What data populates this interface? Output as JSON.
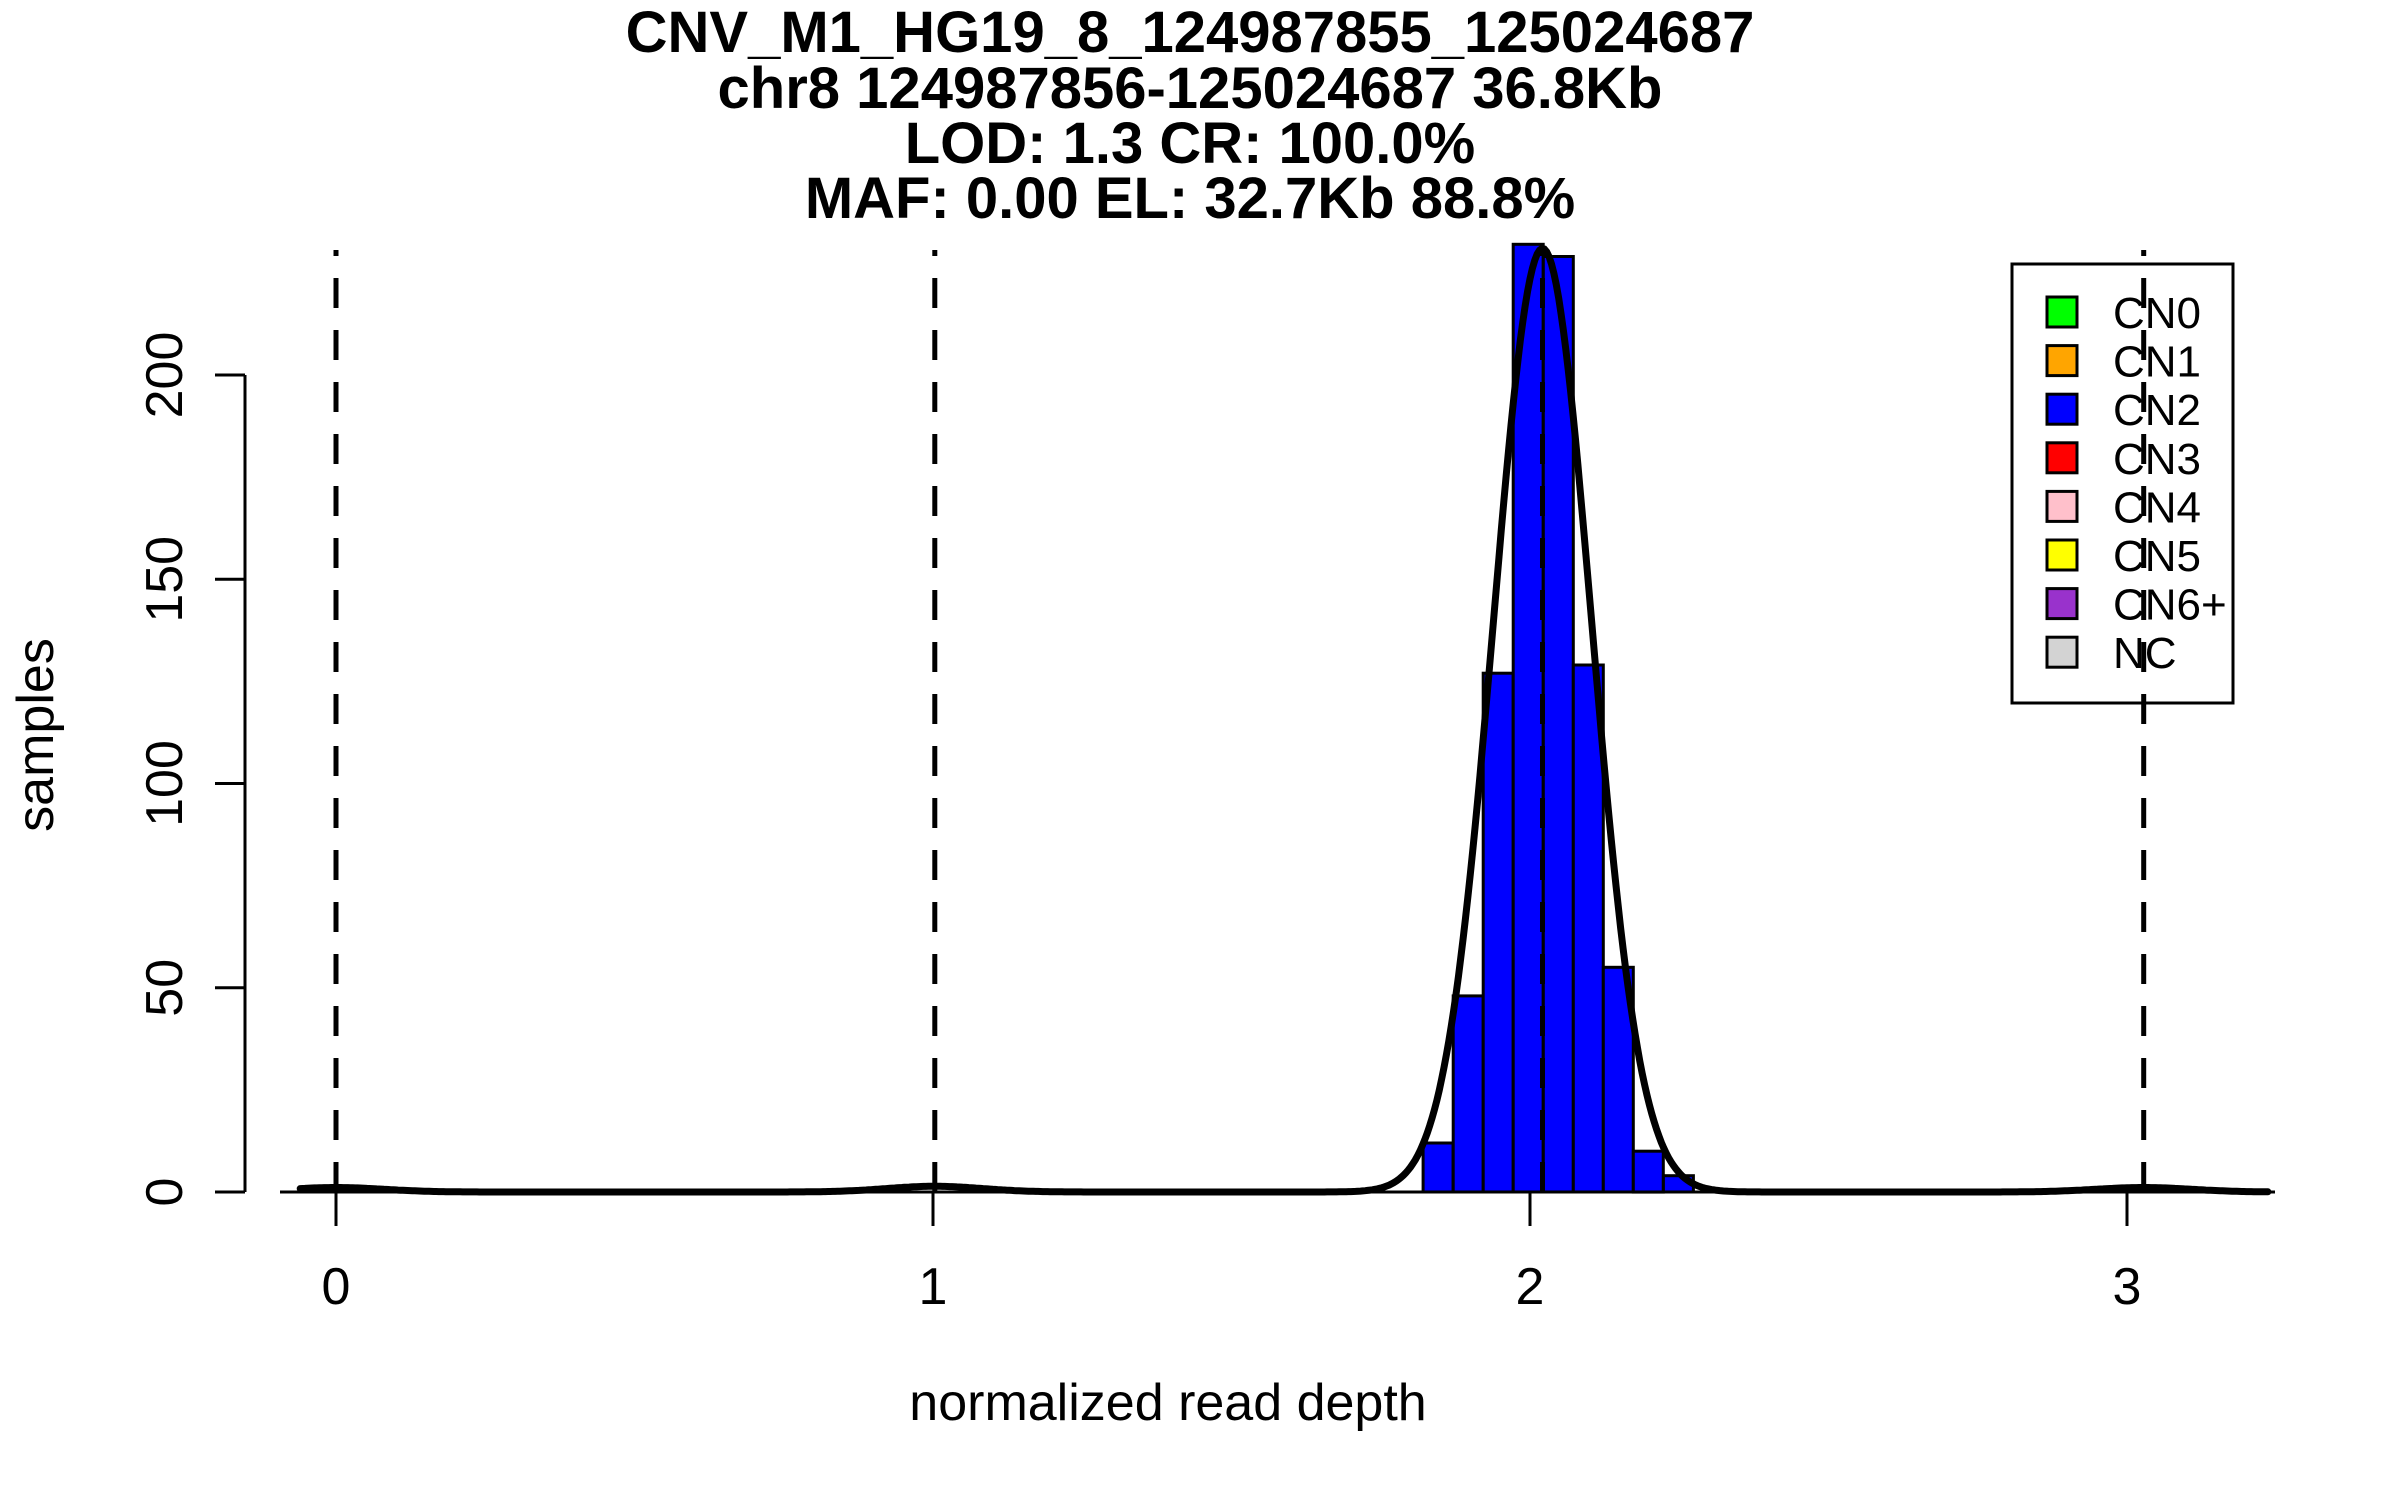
{
  "chart_data": {
    "type": "bar",
    "subtype": "histogram-with-density-fit",
    "title_lines": [
      "CNV_M1_HG19_8_124987855_125024687",
      "chr8 124987856-125024687 36.8Kb",
      "LOD: 1.3 CR: 100.0%",
      "MAF: 0.00 EL: 32.7Kb 88.8%"
    ],
    "xlabel": "normalized read depth",
    "ylabel": "samples",
    "x_ticks": [
      0,
      1,
      2,
      3
    ],
    "y_ticks": [
      0,
      50,
      100,
      150,
      200
    ],
    "xlim": [
      -0.09,
      3.25
    ],
    "ylim": [
      0,
      230
    ],
    "grid": "off",
    "histogram": {
      "series_name": "CN2",
      "bin_start": 1.821,
      "bin_width": 0.0503,
      "counts": [
        12,
        48,
        127,
        232,
        229,
        129,
        55,
        10,
        4
      ],
      "fill_color": "#0000FF",
      "border_color": "#000000"
    },
    "dashed_vlines": {
      "x_values": [
        0,
        1.003,
        2.021,
        3.028
      ],
      "color": "#000000",
      "style": "dashed"
    },
    "fit_curve": {
      "color": "#000000",
      "components": [
        {
          "mean": 2.021,
          "sd": 0.082,
          "amplitude": 231
        },
        {
          "mean": 1.003,
          "sd": 0.08,
          "amplitude": 1.4
        },
        {
          "mean": 0.0,
          "sd": 0.08,
          "amplitude": 1.1
        },
        {
          "mean": 3.028,
          "sd": 0.08,
          "amplitude": 1.1
        }
      ]
    },
    "legend": {
      "position": "top-right",
      "entries": [
        {
          "label": "CN0",
          "color": "#00FF00"
        },
        {
          "label": "CN1",
          "color": "#FFA500"
        },
        {
          "label": "CN2",
          "color": "#0000FF"
        },
        {
          "label": "CN3",
          "color": "#FF0000"
        },
        {
          "label": "CN4",
          "color": "#FFC0CB"
        },
        {
          "label": "CN5",
          "color": "#FFFF00"
        },
        {
          "label": "CN6+",
          "color": "#9932CC"
        },
        {
          "label": "NC",
          "color": "#D3D3D3"
        }
      ]
    }
  }
}
